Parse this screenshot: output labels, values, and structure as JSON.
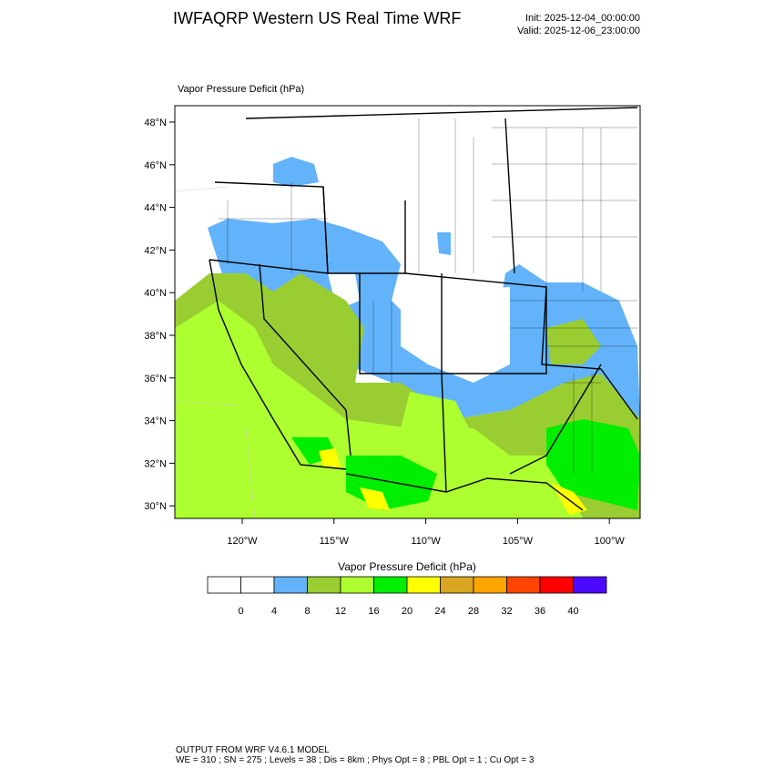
{
  "header": {
    "title": "IWFAQRP Western US Real Time WRF",
    "init": "Init: 2025-12-04_00:00:00",
    "valid": "Valid: 2025-12-06_23:00:00"
  },
  "map": {
    "title": "Vapor Pressure Deficit   (hPa)",
    "lat_labels": [
      "48°N",
      "46°N",
      "44°N",
      "42°N",
      "40°N",
      "38°N",
      "36°N",
      "34°N",
      "32°N",
      "30°N"
    ],
    "lon_labels": [
      "120°W",
      "115°W",
      "110°W",
      "105°W",
      "100°W"
    ]
  },
  "colorbar": {
    "title": "Vapor Pressure Deficit  (hPa)",
    "colors": [
      "#ffffff",
      "#ffffff",
      "#63b3fa",
      "#9acd32",
      "#adff2f",
      "#00ee00",
      "#ffff00",
      "#daa520",
      "#ffa500",
      "#ff4500",
      "#ff0000",
      "#4b0aff"
    ],
    "ticks": [
      0,
      4,
      8,
      12,
      16,
      20,
      24,
      28,
      32,
      36,
      40
    ]
  },
  "footer": {
    "line1": "OUTPUT FROM WRF V4.6.1 MODEL",
    "line2": "WE = 310 ; SN = 275 ; Levels = 38 ; Dis = 8km ; Phys Opt = 8 ; PBL Opt = 1 ; Cu Opt = 3"
  }
}
